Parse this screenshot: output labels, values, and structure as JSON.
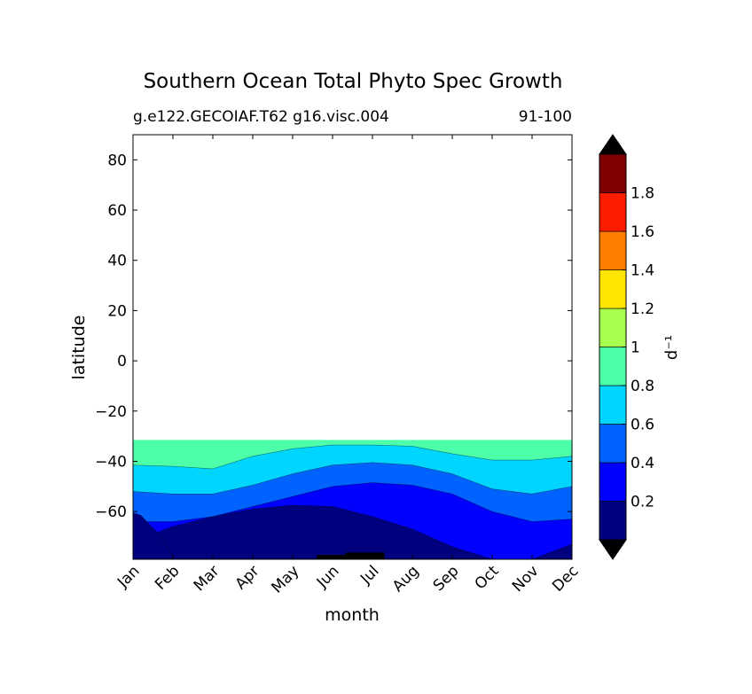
{
  "chart_data": {
    "type": "contour",
    "title": "Southern Ocean Total Phyto Spec Growth",
    "subtitle_left": "g.e122.GECOIAF.T62 g16.visc.004",
    "subtitle_right": "91-100",
    "xlabel": "month",
    "ylabel": "latitude",
    "x_categories": [
      "Jan",
      "Feb",
      "Mar",
      "Apr",
      "May",
      "Jun",
      "Jul",
      "Aug",
      "Sep",
      "Oct",
      "Nov",
      "Dec"
    ],
    "xlim": [
      1,
      12
    ],
    "ylim": [
      -79,
      90
    ],
    "y_ticks": [
      80,
      60,
      40,
      20,
      0,
      -20,
      -40,
      -60
    ],
    "y_tick_labels": [
      "80",
      "60",
      "40",
      "20",
      "0",
      "−20",
      "−40",
      "−60"
    ],
    "data_extent_lat": [
      -79,
      -31.5
    ],
    "colorbar": {
      "label": "d⁻¹",
      "levels": [
        0,
        0.2,
        0.4,
        0.6,
        0.8,
        1.0,
        1.2,
        1.4,
        1.6,
        1.8,
        2.0
      ],
      "tick_labels": [
        "0.2",
        "0.4",
        "0.6",
        "0.8",
        "1",
        "1.2",
        "1.4",
        "1.6",
        "1.8"
      ],
      "colors": [
        "#00007f",
        "#0000ff",
        "#0063ff",
        "#00d5ff",
        "#4dffa9",
        "#a9ff4d",
        "#ffe500",
        "#ff7d00",
        "#ff1d00",
        "#7f0000"
      ],
      "extend": "both",
      "under_color": "#000000",
      "over_color": "#000000"
    },
    "contour_boundaries": [
      {
        "level": 0.2,
        "lat": [
          -60.5,
          -61.5,
          -65,
          -68,
          -72.5,
          -78
        ]
      },
      {
        "level": 0.2,
        "lat": [
          -72,
          -66,
          -62,
          -59,
          -57.5,
          -58,
          -62,
          -67,
          -74,
          -79,
          -79,
          -73
        ]
      },
      {
        "level": 0.4,
        "lat": [
          -64,
          -64,
          -62,
          -58,
          -54,
          -50,
          -48.5,
          -49.5,
          -53,
          -60,
          -64,
          -63
        ]
      },
      {
        "level": 0.6,
        "lat": [
          -52,
          -53,
          -53,
          -49.5,
          -45,
          -41.5,
          -40.5,
          -41.5,
          -45,
          -51,
          -53,
          -50
        ]
      },
      {
        "level": 0.8,
        "lat": [
          -41.5,
          -42,
          -43,
          -38,
          -35,
          -33.5,
          -33.5,
          -34,
          -37,
          -39.5,
          -39.5,
          -38
        ]
      }
    ]
  }
}
